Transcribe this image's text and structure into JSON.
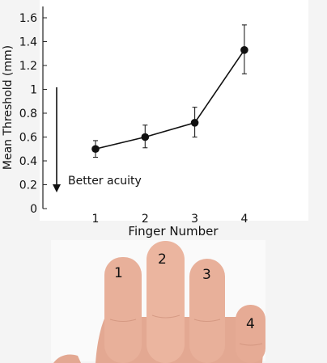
{
  "chart_data": {
    "type": "line",
    "xlabel": "Finger Number",
    "ylabel": "Mean Threshold (mm)",
    "x": [
      1,
      2,
      3,
      4
    ],
    "y": [
      0.5,
      0.6,
      0.72,
      1.33
    ],
    "y_err_low": [
      0.43,
      0.51,
      0.6,
      1.13
    ],
    "y_err_high": [
      0.57,
      0.7,
      0.85,
      1.54
    ],
    "xlim": [
      0.3,
      4.7
    ],
    "ylim": [
      0,
      1.7
    ],
    "xticks": [
      "1",
      "2",
      "3",
      "4"
    ],
    "yticks": [
      "0",
      "0.2",
      "0.4",
      "0.6",
      "0.8",
      "1",
      "1.2",
      "1.4",
      "1.6"
    ],
    "ytick_values": [
      0,
      0.2,
      0.4,
      0.6,
      0.8,
      1,
      1.2,
      1.4,
      1.6
    ],
    "grid": false,
    "annotation": "Better acuity",
    "line_color": "#111111"
  },
  "hand_photo": {
    "finger_labels": [
      "1",
      "2",
      "3",
      "4"
    ],
    "skin_color": "#e8b09a"
  }
}
